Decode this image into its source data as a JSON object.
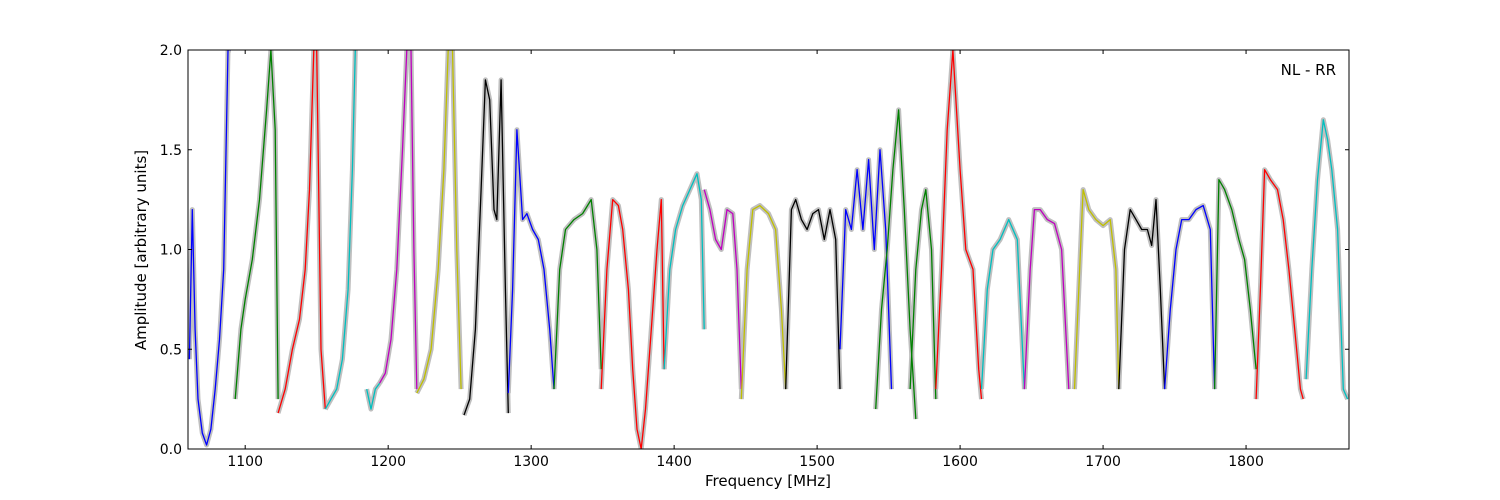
{
  "chart_data": {
    "type": "line",
    "xlabel": "Frequency [MHz]",
    "ylabel": "Amplitude [arbitrary units]",
    "annotation": "NL - RR",
    "xlim": [
      1060,
      1872
    ],
    "ylim": [
      0.0,
      2.0
    ],
    "x_ticks": [
      1100,
      1200,
      1300,
      1400,
      1500,
      1600,
      1700,
      1800
    ],
    "x_tick_labels": [
      "1100",
      "1200",
      "1300",
      "1400",
      "1500",
      "1600",
      "1700",
      "1800"
    ],
    "y_ticks": [
      0.0,
      0.5,
      1.0,
      1.5,
      2.0
    ],
    "y_tick_labels": [
      "0.0",
      "0.5",
      "1.0",
      "1.5",
      "2.0"
    ],
    "grid": false,
    "background_color": "#bfbfbf",
    "colors": {
      "b": "#0000ff",
      "g": "#008000",
      "r": "#ff0000",
      "c": "#00bfbf",
      "m": "#bf00bf",
      "y": "#bfbf00",
      "k": "#000000"
    },
    "segments": [
      {
        "color": "b",
        "points": [
          [
            1061,
            0.45
          ],
          [
            1063,
            1.2
          ],
          [
            1065,
            0.6
          ],
          [
            1067,
            0.25
          ],
          [
            1070,
            0.08
          ],
          [
            1073,
            0.02
          ],
          [
            1076,
            0.1
          ],
          [
            1079,
            0.3
          ],
          [
            1082,
            0.55
          ],
          [
            1085,
            0.9
          ],
          [
            1088,
            2.0
          ],
          [
            1090,
            2.0
          ]
        ]
      },
      {
        "color": "g",
        "points": [
          [
            1093,
            0.25
          ],
          [
            1097,
            0.6
          ],
          [
            1100,
            0.75
          ],
          [
            1105,
            0.95
          ],
          [
            1110,
            1.25
          ],
          [
            1115,
            1.7
          ],
          [
            1118,
            2.0
          ],
          [
            1121,
            1.6
          ],
          [
            1123,
            0.25
          ]
        ]
      },
      {
        "color": "r",
        "points": [
          [
            1123,
            0.18
          ],
          [
            1128,
            0.3
          ],
          [
            1133,
            0.5
          ],
          [
            1138,
            0.65
          ],
          [
            1142,
            0.9
          ],
          [
            1145,
            1.3
          ],
          [
            1148,
            2.0
          ],
          [
            1150,
            2.0
          ],
          [
            1153,
            0.5
          ],
          [
            1156,
            0.2
          ]
        ]
      },
      {
        "color": "c",
        "points": [
          [
            1156,
            0.2
          ],
          [
            1160,
            0.25
          ],
          [
            1164,
            0.3
          ],
          [
            1168,
            0.45
          ],
          [
            1172,
            0.8
          ],
          [
            1175,
            1.4
          ],
          [
            1177,
            2.0
          ]
        ]
      },
      {
        "color": "c",
        "points": [
          [
            1185,
            0.3
          ],
          [
            1188,
            0.2
          ],
          [
            1191,
            0.3
          ],
          [
            1194,
            0.33
          ]
        ]
      },
      {
        "color": "m",
        "points": [
          [
            1194,
            0.33
          ],
          [
            1198,
            0.38
          ],
          [
            1202,
            0.55
          ],
          [
            1206,
            0.9
          ],
          [
            1210,
            1.5
          ],
          [
            1213,
            2.0
          ],
          [
            1216,
            2.0
          ],
          [
            1218,
            1.0
          ],
          [
            1220,
            0.3
          ]
        ]
      },
      {
        "color": "y",
        "points": [
          [
            1220,
            0.28
          ],
          [
            1225,
            0.35
          ],
          [
            1230,
            0.5
          ],
          [
            1235,
            0.9
          ],
          [
            1239,
            1.4
          ],
          [
            1242,
            2.0
          ],
          [
            1245,
            2.0
          ],
          [
            1248,
            1.0
          ],
          [
            1251,
            0.3
          ]
        ]
      },
      {
        "color": "k",
        "points": [
          [
            1253,
            0.17
          ],
          [
            1257,
            0.25
          ],
          [
            1261,
            0.6
          ],
          [
            1265,
            1.3
          ],
          [
            1268,
            1.85
          ],
          [
            1271,
            1.75
          ],
          [
            1274,
            1.2
          ],
          [
            1276,
            1.15
          ],
          [
            1279,
            1.85
          ],
          [
            1282,
            0.8
          ],
          [
            1284,
            0.18
          ]
        ]
      },
      {
        "color": "b",
        "points": [
          [
            1284,
            0.28
          ],
          [
            1287,
            0.8
          ],
          [
            1290,
            1.6
          ],
          [
            1294,
            1.15
          ],
          [
            1297,
            1.18
          ],
          [
            1301,
            1.1
          ],
          [
            1305,
            1.05
          ],
          [
            1309,
            0.9
          ],
          [
            1313,
            0.6
          ],
          [
            1316,
            0.3
          ]
        ]
      },
      {
        "color": "g",
        "points": [
          [
            1316,
            0.3
          ],
          [
            1320,
            0.9
          ],
          [
            1324,
            1.1
          ],
          [
            1330,
            1.15
          ],
          [
            1336,
            1.18
          ],
          [
            1342,
            1.25
          ],
          [
            1346,
            1.0
          ],
          [
            1349,
            0.4
          ]
        ]
      },
      {
        "color": "r",
        "points": [
          [
            1349,
            0.3
          ],
          [
            1353,
            0.9
          ],
          [
            1357,
            1.25
          ],
          [
            1361,
            1.22
          ],
          [
            1364,
            1.1
          ],
          [
            1368,
            0.8
          ],
          [
            1371,
            0.4
          ],
          [
            1374,
            0.1
          ],
          [
            1377,
            0.0
          ],
          [
            1380,
            0.2
          ],
          [
            1384,
            0.6
          ],
          [
            1388,
            1.0
          ],
          [
            1391,
            1.25
          ],
          [
            1393,
            0.4
          ]
        ]
      },
      {
        "color": "c",
        "points": [
          [
            1393,
            0.4
          ],
          [
            1397,
            0.9
          ],
          [
            1401,
            1.1
          ],
          [
            1406,
            1.22
          ],
          [
            1411,
            1.3
          ],
          [
            1416,
            1.38
          ],
          [
            1419,
            1.25
          ],
          [
            1421,
            0.6
          ]
        ]
      },
      {
        "color": "m",
        "points": [
          [
            1421,
            1.3
          ],
          [
            1425,
            1.2
          ],
          [
            1429,
            1.05
          ],
          [
            1433,
            1.0
          ],
          [
            1437,
            1.2
          ],
          [
            1441,
            1.18
          ],
          [
            1444,
            0.9
          ],
          [
            1447,
            0.3
          ]
        ]
      },
      {
        "color": "y",
        "points": [
          [
            1447,
            0.25
          ],
          [
            1451,
            0.9
          ],
          [
            1455,
            1.2
          ],
          [
            1460,
            1.22
          ],
          [
            1466,
            1.18
          ],
          [
            1471,
            1.1
          ],
          [
            1475,
            0.7
          ],
          [
            1478,
            0.3
          ]
        ]
      },
      {
        "color": "k",
        "points": [
          [
            1478,
            0.3
          ],
          [
            1482,
            1.2
          ],
          [
            1485,
            1.25
          ],
          [
            1489,
            1.15
          ],
          [
            1493,
            1.1
          ],
          [
            1497,
            1.18
          ],
          [
            1501,
            1.2
          ],
          [
            1505,
            1.05
          ],
          [
            1509,
            1.2
          ],
          [
            1513,
            1.05
          ],
          [
            1516,
            0.3
          ]
        ]
      },
      {
        "color": "b",
        "points": [
          [
            1516,
            0.5
          ],
          [
            1520,
            1.2
          ],
          [
            1524,
            1.1
          ],
          [
            1528,
            1.4
          ],
          [
            1532,
            1.1
          ],
          [
            1536,
            1.45
          ],
          [
            1540,
            1.0
          ],
          [
            1544,
            1.5
          ],
          [
            1548,
            1.1
          ],
          [
            1552,
            0.3
          ]
        ]
      },
      {
        "color": "g",
        "points": [
          [
            1541,
            0.2
          ],
          [
            1545,
            0.7
          ],
          [
            1549,
            1.0
          ],
          [
            1553,
            1.4
          ],
          [
            1557,
            1.7
          ],
          [
            1561,
            1.2
          ],
          [
            1565,
            0.6
          ],
          [
            1569,
            0.15
          ]
        ]
      },
      {
        "color": "g",
        "points": [
          [
            1565,
            0.3
          ],
          [
            1569,
            0.9
          ],
          [
            1573,
            1.2
          ],
          [
            1576,
            1.3
          ],
          [
            1580,
            1.0
          ],
          [
            1583,
            0.25
          ]
        ]
      },
      {
        "color": "r",
        "points": [
          [
            1583,
            0.3
          ],
          [
            1587,
            0.9
          ],
          [
            1591,
            1.6
          ],
          [
            1595,
            2.0
          ],
          [
            1600,
            1.4
          ],
          [
            1604,
            1.0
          ],
          [
            1609,
            0.9
          ],
          [
            1613,
            0.4
          ],
          [
            1615,
            0.25
          ]
        ]
      },
      {
        "color": "c",
        "points": [
          [
            1615,
            0.3
          ],
          [
            1619,
            0.8
          ],
          [
            1623,
            1.0
          ],
          [
            1628,
            1.05
          ],
          [
            1634,
            1.15
          ],
          [
            1640,
            1.05
          ],
          [
            1645,
            0.3
          ]
        ]
      },
      {
        "color": "m",
        "points": [
          [
            1645,
            0.3
          ],
          [
            1649,
            0.9
          ],
          [
            1652,
            1.2
          ],
          [
            1656,
            1.2
          ],
          [
            1661,
            1.15
          ],
          [
            1666,
            1.13
          ],
          [
            1671,
            1.0
          ],
          [
            1676,
            0.3
          ]
        ]
      },
      {
        "color": "y",
        "points": [
          [
            1680,
            0.3
          ],
          [
            1683,
            0.8
          ],
          [
            1686,
            1.3
          ],
          [
            1690,
            1.2
          ],
          [
            1695,
            1.15
          ],
          [
            1700,
            1.12
          ],
          [
            1705,
            1.15
          ],
          [
            1709,
            0.9
          ],
          [
            1711,
            0.3
          ]
        ]
      },
      {
        "color": "k",
        "points": [
          [
            1711,
            0.3
          ],
          [
            1715,
            1.0
          ],
          [
            1719,
            1.2
          ],
          [
            1723,
            1.15
          ],
          [
            1727,
            1.1
          ],
          [
            1731,
            1.1
          ],
          [
            1734,
            1.02
          ],
          [
            1737,
            1.25
          ],
          [
            1740,
            0.8
          ],
          [
            1743,
            0.3
          ]
        ]
      },
      {
        "color": "b",
        "points": [
          [
            1743,
            0.3
          ],
          [
            1747,
            0.7
          ],
          [
            1751,
            1.0
          ],
          [
            1755,
            1.15
          ],
          [
            1760,
            1.15
          ],
          [
            1765,
            1.2
          ],
          [
            1770,
            1.22
          ],
          [
            1775,
            1.1
          ],
          [
            1778,
            0.3
          ]
        ]
      },
      {
        "color": "g",
        "points": [
          [
            1778,
            0.3
          ],
          [
            1781,
            1.35
          ],
          [
            1785,
            1.3
          ],
          [
            1790,
            1.2
          ],
          [
            1795,
            1.05
          ],
          [
            1799,
            0.95
          ],
          [
            1803,
            0.7
          ],
          [
            1807,
            0.4
          ]
        ]
      },
      {
        "color": "r",
        "points": [
          [
            1807,
            0.25
          ],
          [
            1810,
            0.8
          ],
          [
            1813,
            1.4
          ],
          [
            1817,
            1.35
          ],
          [
            1822,
            1.3
          ],
          [
            1826,
            1.15
          ],
          [
            1830,
            0.9
          ],
          [
            1834,
            0.6
          ],
          [
            1838,
            0.3
          ],
          [
            1840,
            0.25
          ]
        ]
      },
      {
        "color": "c",
        "points": [
          [
            1842,
            0.35
          ],
          [
            1846,
            0.9
          ],
          [
            1850,
            1.35
          ],
          [
            1854,
            1.65
          ],
          [
            1857,
            1.55
          ],
          [
            1860,
            1.4
          ],
          [
            1864,
            1.1
          ],
          [
            1868,
            0.3
          ],
          [
            1871,
            0.25
          ]
        ]
      }
    ]
  }
}
